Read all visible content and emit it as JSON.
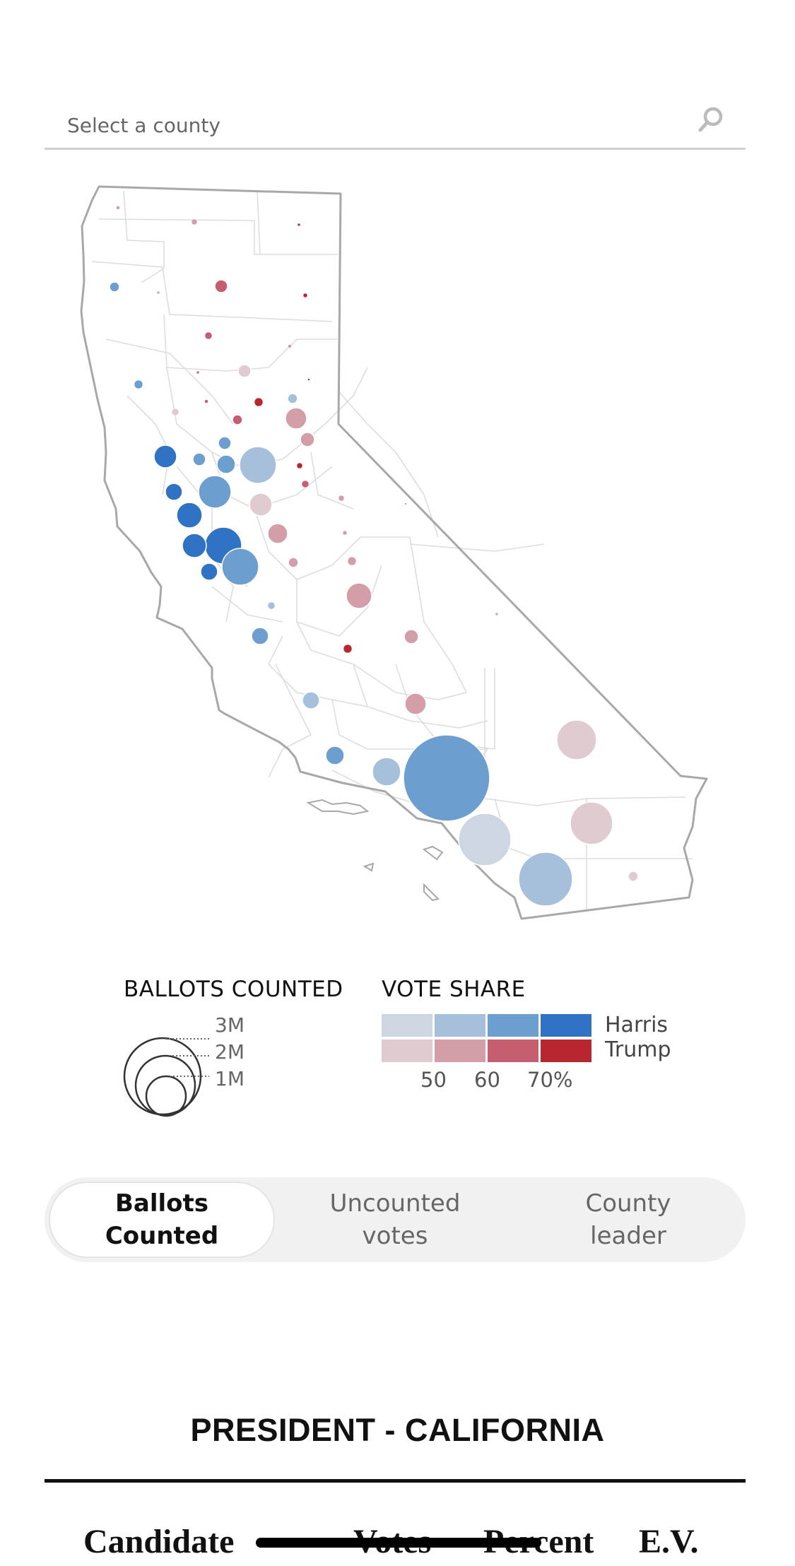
{
  "search": {
    "placeholder": "Select a county",
    "icon": "search-icon"
  },
  "map": {
    "state": "California",
    "colors": {
      "outline": "#a8a8a8",
      "county_lines": "#dddddd",
      "harris": [
        "#cdd6e1",
        "#a6bfdb",
        "#6c9fd0",
        "#3073c4"
      ],
      "trump": [
        "#e0cbd0",
        "#d49ea8",
        "#c55f70",
        "#b8262f"
      ]
    }
  },
  "legend": {
    "ballots": {
      "title": "BALLOTS COUNTED",
      "labels": [
        "3M",
        "2M",
        "1M"
      ]
    },
    "share": {
      "title": "VOTE SHARE",
      "candidates": [
        "Harris",
        "Trump"
      ],
      "ticks": [
        "50",
        "60",
        "70%"
      ]
    }
  },
  "toggle": {
    "options": [
      {
        "label": "Ballots\nCounted",
        "active": true
      },
      {
        "label": "Uncounted\nvotes",
        "active": false
      },
      {
        "label": "County\nleader",
        "active": false
      }
    ]
  },
  "race": {
    "title": "PRESIDENT - CALIFORNIA",
    "columns": [
      "Candidate",
      "Votes",
      "Percent",
      "E.V."
    ]
  }
}
